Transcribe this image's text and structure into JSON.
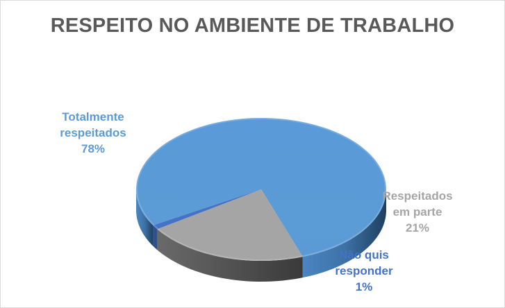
{
  "chart_data": {
    "type": "pie",
    "style": "3d",
    "title": "RESPEITO NO AMBIENTE DE TRABALHO",
    "slices": [
      {
        "label_lines": [
          "Totalmente",
          "respeitados"
        ],
        "value": 78,
        "value_label": "78%",
        "color": "#5b9bd5",
        "side_color": "#3d72a6"
      },
      {
        "label_lines": [
          "Respeitados",
          "em parte"
        ],
        "value": 21,
        "value_label": "21%",
        "color": "#a5a5a5",
        "side_color": "#555555"
      },
      {
        "label_lines": [
          "Não quis",
          "responder"
        ],
        "value": 1,
        "value_label": "1%",
        "color": "#4472c4",
        "side_color": "#2f528f"
      }
    ]
  },
  "colors": {
    "label_totalmente": "#5b9bd5",
    "label_parte": "#a5a5a5",
    "label_nao": "#4472c4"
  }
}
